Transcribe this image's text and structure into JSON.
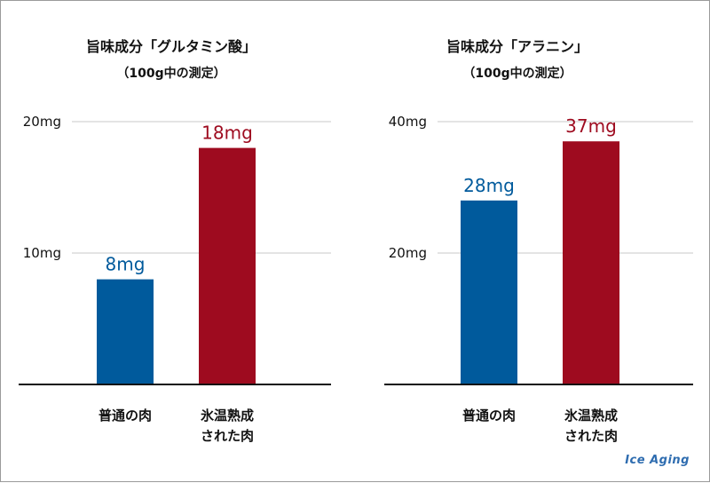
{
  "colors": {
    "normal": "#005a9c",
    "aged": "#9e0b1f",
    "grid": "#c8c8c8",
    "axis": "#111111"
  },
  "chart_data": [
    {
      "type": "bar",
      "title": "旨味成分「グルタミン酸」",
      "subtitle": "（100g中の測定）",
      "categories": [
        [
          "普通の肉"
        ],
        [
          "氷温熟成",
          "された肉"
        ]
      ],
      "values": [
        8,
        18
      ],
      "data_labels": [
        "8mg",
        "18mg"
      ],
      "ylim": [
        0,
        20
      ],
      "yticks": [
        {
          "value": 10,
          "label": "10mg"
        },
        {
          "value": 20,
          "label": "20mg"
        }
      ],
      "grid": true
    },
    {
      "type": "bar",
      "title": "旨味成分「アラニン」",
      "subtitle": "（100g中の測定）",
      "categories": [
        [
          "普通の肉"
        ],
        [
          "氷温熟成",
          "された肉"
        ]
      ],
      "values": [
        28,
        37
      ],
      "data_labels": [
        "28mg",
        "37mg"
      ],
      "ylim": [
        0,
        40
      ],
      "yticks": [
        {
          "value": 20,
          "label": "20mg"
        },
        {
          "value": 40,
          "label": "40mg"
        }
      ],
      "grid": true
    }
  ],
  "watermark": "Ice Aging"
}
